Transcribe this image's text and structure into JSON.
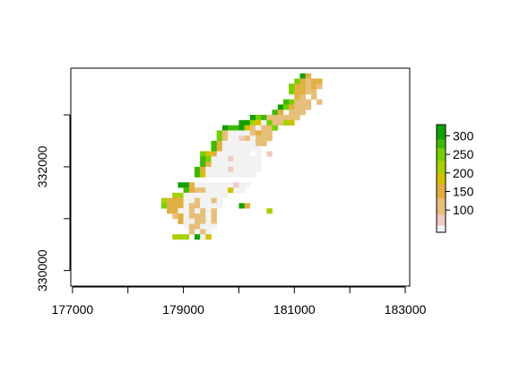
{
  "chart_data": {
    "type": "heatmap",
    "title": "",
    "xlabel": "",
    "ylabel": "",
    "xlim": [
      176970,
      183080
    ],
    "ylim": [
      329700,
      333900
    ],
    "grid": false,
    "cell_size": 100,
    "x_ticks": [
      177000,
      178000,
      179000,
      180000,
      181000,
      182000,
      183000
    ],
    "x_tick_labels": [
      "177000",
      "",
      "179000",
      "",
      "181000",
      "",
      "183000"
    ],
    "y_ticks": [
      330000,
      331000,
      332000,
      333000
    ],
    "y_tick_labels": [
      "330000",
      "",
      "332000",
      ""
    ],
    "legend": {
      "placement": "right",
      "min": 40,
      "max": 330,
      "ticks": [
        100,
        150,
        200,
        250,
        300
      ],
      "tick_labels": [
        "100",
        "150",
        "200",
        "250",
        "300"
      ]
    },
    "colors": [
      "#F2F2F2",
      "#F0C9C0",
      "#E6C07A",
      "#E1B040",
      "#D2C100",
      "#A8D000",
      "#74CF00",
      "#3EB900",
      "#12A000",
      "#00A600"
    ],
    "value_bins": [
      60,
      90,
      130,
      170,
      200,
      235,
      265,
      290,
      320,
      335
    ],
    "cells": [
      [
        181100,
        333700,
        310
      ],
      [
        181200,
        333700,
        140
      ],
      [
        181000,
        333600,
        265
      ],
      [
        181100,
        333600,
        150
      ],
      [
        181200,
        333600,
        120
      ],
      [
        181300,
        333600,
        150
      ],
      [
        181400,
        333600,
        170
      ],
      [
        180900,
        333500,
        250
      ],
      [
        181000,
        333500,
        160
      ],
      [
        181100,
        333500,
        150
      ],
      [
        181200,
        333500,
        110
      ],
      [
        181300,
        333500,
        140
      ],
      [
        181400,
        333500,
        120
      ],
      [
        180900,
        333400,
        260
      ],
      [
        181000,
        333400,
        160
      ],
      [
        181100,
        333400,
        140
      ],
      [
        181200,
        333400,
        110
      ],
      [
        181300,
        333400,
        110
      ],
      [
        181000,
        333300,
        160
      ],
      [
        181100,
        333300,
        120
      ],
      [
        181300,
        333300,
        100
      ],
      [
        180800,
        333200,
        280
      ],
      [
        180900,
        333200,
        260
      ],
      [
        181000,
        333200,
        120
      ],
      [
        181100,
        333200,
        105
      ],
      [
        181200,
        333200,
        100
      ],
      [
        181400,
        333200,
        100
      ],
      [
        180700,
        333100,
        300
      ],
      [
        180800,
        333100,
        260
      ],
      [
        180900,
        333100,
        150
      ],
      [
        181000,
        333100,
        110
      ],
      [
        181100,
        333100,
        105
      ],
      [
        181200,
        333100,
        110
      ],
      [
        180600,
        333000,
        290
      ],
      [
        180700,
        333000,
        150
      ],
      [
        180900,
        333000,
        110
      ],
      [
        181000,
        333000,
        105
      ],
      [
        181100,
        333000,
        105
      ],
      [
        180200,
        332900,
        310
      ],
      [
        180300,
        332900,
        250
      ],
      [
        180400,
        332900,
        290
      ],
      [
        180500,
        332900,
        130
      ],
      [
        180600,
        332900,
        120
      ],
      [
        180700,
        332900,
        110
      ],
      [
        180800,
        332900,
        110
      ],
      [
        180900,
        332900,
        110
      ],
      [
        181000,
        332900,
        105
      ],
      [
        180000,
        332800,
        310
      ],
      [
        180100,
        332800,
        300
      ],
      [
        180200,
        332800,
        230
      ],
      [
        180300,
        332800,
        200
      ],
      [
        180400,
        332800,
        60
      ],
      [
        180500,
        332800,
        250
      ],
      [
        180600,
        332800,
        110
      ],
      [
        180700,
        332800,
        105
      ],
      [
        180800,
        332800,
        210
      ],
      [
        180900,
        332800,
        200
      ],
      [
        179700,
        332700,
        300
      ],
      [
        179800,
        332700,
        270
      ],
      [
        179900,
        332700,
        290
      ],
      [
        180000,
        332700,
        300
      ],
      [
        180100,
        332700,
        190
      ],
      [
        180200,
        332700,
        110
      ],
      [
        180300,
        332700,
        60
      ],
      [
        180400,
        332700,
        110
      ],
      [
        180500,
        332700,
        110
      ],
      [
        180600,
        332700,
        250
      ],
      [
        179600,
        332600,
        260
      ],
      [
        179700,
        332600,
        110
      ],
      [
        179800,
        332600,
        60
      ],
      [
        179900,
        332600,
        60
      ],
      [
        180000,
        332600,
        60
      ],
      [
        180100,
        332600,
        60
      ],
      [
        180200,
        332600,
        110
      ],
      [
        180300,
        332600,
        140
      ],
      [
        180400,
        332600,
        110
      ],
      [
        180500,
        332600,
        110
      ],
      [
        179600,
        332500,
        240
      ],
      [
        179700,
        332500,
        110
      ],
      [
        179800,
        332500,
        60
      ],
      [
        179900,
        332500,
        60
      ],
      [
        180000,
        332500,
        70
      ],
      [
        180100,
        332500,
        110
      ],
      [
        180200,
        332500,
        60
      ],
      [
        180300,
        332500,
        110
      ],
      [
        180400,
        332500,
        110
      ],
      [
        180500,
        332500,
        110
      ],
      [
        179500,
        332400,
        280
      ],
      [
        179600,
        332400,
        170
      ],
      [
        179700,
        332400,
        60
      ],
      [
        179800,
        332400,
        60
      ],
      [
        179900,
        332400,
        60
      ],
      [
        180000,
        332400,
        60
      ],
      [
        180100,
        332400,
        60
      ],
      [
        180200,
        332400,
        60
      ],
      [
        180300,
        332400,
        100
      ],
      [
        180400,
        332400,
        110
      ],
      [
        179500,
        332300,
        290
      ],
      [
        179600,
        332300,
        150
      ],
      [
        179700,
        332300,
        60
      ],
      [
        179800,
        332300,
        60
      ],
      [
        179900,
        332300,
        60
      ],
      [
        180000,
        332300,
        60
      ],
      [
        180100,
        332300,
        60
      ],
      [
        180200,
        332300,
        60
      ],
      [
        180300,
        332300,
        60
      ],
      [
        179300,
        332200,
        260
      ],
      [
        179400,
        332200,
        180
      ],
      [
        179500,
        332200,
        140
      ],
      [
        179600,
        332200,
        60
      ],
      [
        179700,
        332200,
        60
      ],
      [
        179800,
        332200,
        60
      ],
      [
        179900,
        332200,
        60
      ],
      [
        180000,
        332200,
        60
      ],
      [
        180100,
        332200,
        60
      ],
      [
        180300,
        332200,
        60
      ],
      [
        180500,
        332200,
        80
      ],
      [
        179300,
        332100,
        270
      ],
      [
        179400,
        332100,
        240
      ],
      [
        179500,
        332100,
        60
      ],
      [
        179600,
        332100,
        60
      ],
      [
        179700,
        332100,
        60
      ],
      [
        179800,
        332100,
        90
      ],
      [
        179900,
        332100,
        60
      ],
      [
        180000,
        332100,
        60
      ],
      [
        180100,
        332100,
        60
      ],
      [
        180200,
        332100,
        60
      ],
      [
        180300,
        332100,
        60
      ],
      [
        179300,
        332000,
        280
      ],
      [
        179400,
        332000,
        150
      ],
      [
        179500,
        332000,
        60
      ],
      [
        179600,
        332000,
        60
      ],
      [
        179700,
        332000,
        60
      ],
      [
        179800,
        332000,
        60
      ],
      [
        179900,
        332000,
        60
      ],
      [
        180000,
        332000,
        60
      ],
      [
        180100,
        332000,
        60
      ],
      [
        180200,
        332000,
        60
      ],
      [
        180300,
        332000,
        60
      ],
      [
        179200,
        331900,
        280
      ],
      [
        179300,
        331900,
        160
      ],
      [
        179400,
        331900,
        60
      ],
      [
        179500,
        331900,
        60
      ],
      [
        179600,
        331900,
        60
      ],
      [
        179700,
        331900,
        60
      ],
      [
        179800,
        331900,
        90
      ],
      [
        179900,
        331900,
        60
      ],
      [
        180000,
        331900,
        60
      ],
      [
        180100,
        331900,
        60
      ],
      [
        180200,
        331900,
        60
      ],
      [
        180300,
        331900,
        60
      ],
      [
        179200,
        331800,
        270
      ],
      [
        179300,
        331800,
        200
      ],
      [
        179400,
        331800,
        60
      ],
      [
        179500,
        331800,
        60
      ],
      [
        179600,
        331800,
        60
      ],
      [
        179700,
        331800,
        60
      ],
      [
        179800,
        331800,
        60
      ],
      [
        179900,
        331800,
        60
      ],
      [
        180000,
        331800,
        60
      ],
      [
        180100,
        331800,
        60
      ],
      [
        180200,
        331800,
        60
      ],
      [
        178900,
        331600,
        310
      ],
      [
        179000,
        331600,
        310
      ],
      [
        179100,
        331600,
        160
      ],
      [
        179200,
        331600,
        60
      ],
      [
        179300,
        331600,
        60
      ],
      [
        179400,
        331600,
        60
      ],
      [
        179500,
        331600,
        60
      ],
      [
        179600,
        331600,
        60
      ],
      [
        179700,
        331600,
        60
      ],
      [
        179800,
        331600,
        60
      ],
      [
        179900,
        331600,
        80
      ],
      [
        180000,
        331600,
        60
      ],
      [
        180100,
        331600,
        60
      ],
      [
        179000,
        331500,
        280
      ],
      [
        179100,
        331500,
        150
      ],
      [
        179200,
        331500,
        110
      ],
      [
        179300,
        331500,
        110
      ],
      [
        179400,
        331500,
        60
      ],
      [
        179500,
        331500,
        60
      ],
      [
        179600,
        331500,
        60
      ],
      [
        179700,
        331500,
        60
      ],
      [
        179800,
        331500,
        200
      ],
      [
        179900,
        331500,
        60
      ],
      [
        180000,
        331500,
        60
      ],
      [
        178800,
        331400,
        230
      ],
      [
        178900,
        331400,
        230
      ],
      [
        179000,
        331400,
        60
      ],
      [
        179100,
        331400,
        60
      ],
      [
        179200,
        331400,
        60
      ],
      [
        179300,
        331400,
        60
      ],
      [
        179400,
        331400,
        60
      ],
      [
        179500,
        331400,
        60
      ],
      [
        179600,
        331400,
        60
      ],
      [
        179700,
        331400,
        60
      ],
      [
        178600,
        331300,
        230
      ],
      [
        178700,
        331300,
        150
      ],
      [
        178800,
        331300,
        150
      ],
      [
        178900,
        331300,
        140
      ],
      [
        179000,
        331300,
        60
      ],
      [
        179100,
        331300,
        60
      ],
      [
        179200,
        331300,
        110
      ],
      [
        179300,
        331300,
        60
      ],
      [
        179400,
        331300,
        60
      ],
      [
        179500,
        331300,
        110
      ],
      [
        179600,
        331300,
        60
      ],
      [
        178600,
        331200,
        250
      ],
      [
        178700,
        331200,
        150
      ],
      [
        178800,
        331200,
        150
      ],
      [
        178900,
        331200,
        150
      ],
      [
        179000,
        331200,
        60
      ],
      [
        179100,
        331200,
        110
      ],
      [
        179200,
        331200,
        110
      ],
      [
        179300,
        331200,
        60
      ],
      [
        179400,
        331200,
        60
      ],
      [
        179500,
        331200,
        60
      ],
      [
        179600,
        331200,
        60
      ],
      [
        180000,
        331200,
        310
      ],
      [
        180100,
        331200,
        150
      ],
      [
        178700,
        331100,
        150
      ],
      [
        178800,
        331100,
        150
      ],
      [
        178900,
        331100,
        60
      ],
      [
        179000,
        331100,
        60
      ],
      [
        179100,
        331100,
        110
      ],
      [
        179200,
        331100,
        60
      ],
      [
        179300,
        331100,
        110
      ],
      [
        179400,
        331100,
        60
      ],
      [
        179500,
        331100,
        110
      ],
      [
        180500,
        331100,
        230
      ],
      [
        178800,
        331000,
        110
      ],
      [
        178900,
        331000,
        150
      ],
      [
        179000,
        331000,
        60
      ],
      [
        179100,
        331000,
        110
      ],
      [
        179200,
        331000,
        110
      ],
      [
        179300,
        331000,
        110
      ],
      [
        179400,
        331000,
        60
      ],
      [
        179500,
        331000,
        110
      ],
      [
        178900,
        330900,
        150
      ],
      [
        179000,
        330900,
        60
      ],
      [
        179100,
        330900,
        60
      ],
      [
        179200,
        330900,
        110
      ],
      [
        179300,
        330900,
        110
      ],
      [
        179400,
        330900,
        60
      ],
      [
        179500,
        330900,
        110
      ],
      [
        179000,
        330800,
        60
      ],
      [
        179100,
        330800,
        110
      ],
      [
        179200,
        330800,
        110
      ],
      [
        179300,
        330800,
        60
      ],
      [
        179400,
        330800,
        60
      ],
      [
        179500,
        330800,
        60
      ],
      [
        179100,
        330700,
        110
      ],
      [
        179200,
        330700,
        60
      ],
      [
        179300,
        330700,
        110
      ],
      [
        179400,
        330700,
        60
      ],
      [
        178800,
        330600,
        210
      ],
      [
        178900,
        330600,
        230
      ],
      [
        179000,
        330600,
        230
      ],
      [
        179200,
        330600,
        310
      ],
      [
        179300,
        330600,
        60
      ],
      [
        179400,
        330600,
        200
      ]
    ]
  }
}
